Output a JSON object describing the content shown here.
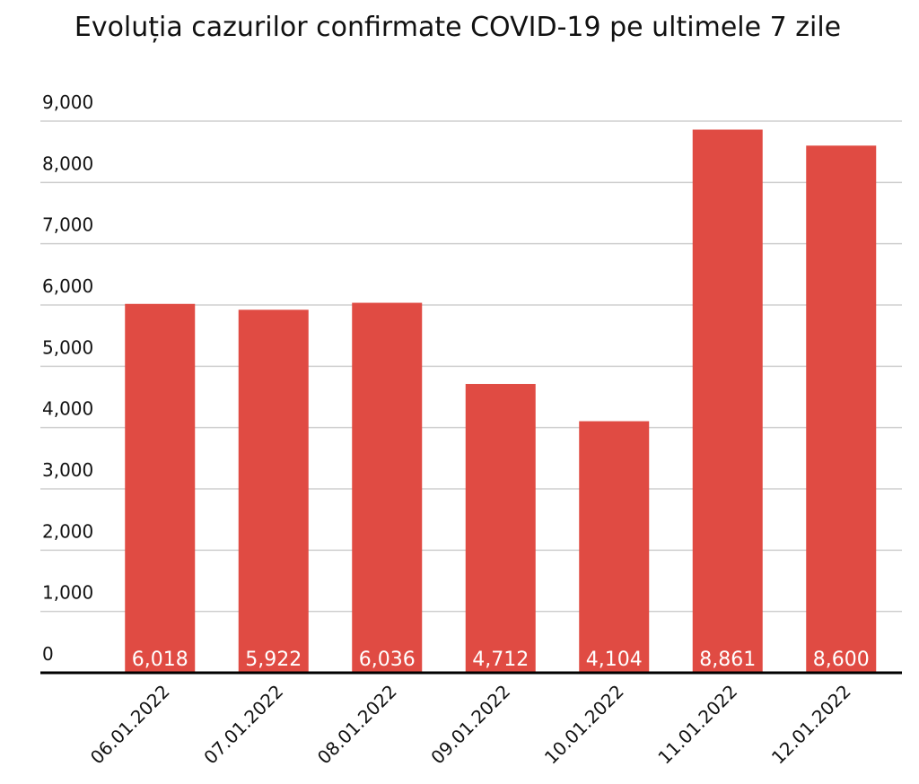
{
  "chart_data": {
    "type": "bar",
    "title": "Evoluția cazurilor confirmate COVID-19 pe ultimele 7 zile",
    "categories": [
      "06.01.2022",
      "07.01.2022",
      "08.01.2022",
      "09.01.2022",
      "10.01.2022",
      "11.01.2022",
      "12.01.2022"
    ],
    "values": [
      6018,
      5922,
      6036,
      4712,
      4104,
      8861,
      8600
    ],
    "value_labels": [
      "6,018",
      "5,922",
      "6,036",
      "4,712",
      "4,104",
      "8,861",
      "8,600"
    ],
    "color": "#e04b43",
    "ylim": [
      0,
      9000
    ],
    "yticks": [
      0,
      {
        "value": 1000,
        "label": "1,000"
      },
      {
        "value": 2000,
        "label": "2,000"
      },
      {
        "value": 3000,
        "label": "3,000"
      },
      {
        "value": 4000,
        "label": "4,000"
      },
      {
        "value": 5000,
        "label": "5,000"
      },
      {
        "value": 6000,
        "label": "6,000"
      },
      {
        "value": 7000,
        "label": "7,000"
      },
      {
        "value": 8000,
        "label": "8,000"
      },
      {
        "value": 9000,
        "label": "9,000"
      }
    ],
    "grid": true
  }
}
